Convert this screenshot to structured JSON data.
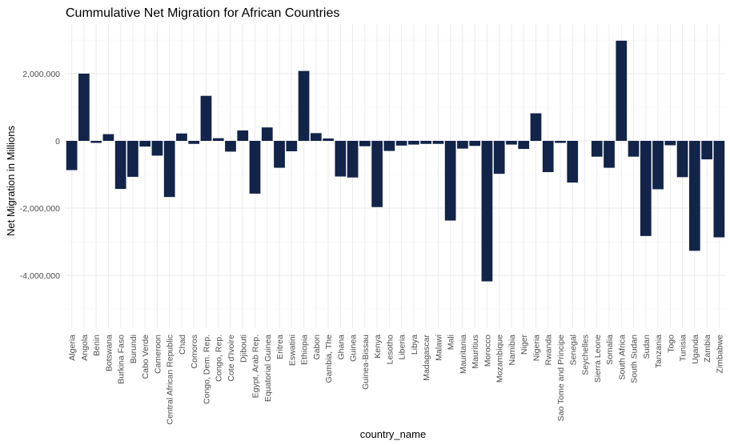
{
  "chart_data": {
    "type": "bar",
    "title": "Cummulative Net Migration for African Countries",
    "xlabel": "country_name",
    "ylabel": "Net Migration in Millions",
    "ylim": [
      -5200000,
      3100000
    ],
    "yticks": [
      -4000000,
      -2000000,
      0,
      2000000
    ],
    "ytick_labels": [
      "-4,000,000",
      "-2,000,000",
      "0",
      "2,000,000"
    ],
    "grid": true,
    "bar_color": "#13244a",
    "categories": [
      "Algeria",
      "Angola",
      "Benin",
      "Botswana",
      "Burkina Faso",
      "Burundi",
      "Cabo Verde",
      "Cameroon",
      "Central African Republic",
      "Chad",
      "Comoros",
      "Congo, Dem. Rep.",
      "Congo, Rep.",
      "Cote d'Ivoire",
      "Djibouti",
      "Egypt, Arab Rep.",
      "Equatorial Guinea",
      "Eritrea",
      "Eswatini",
      "Ethiopia",
      "Gabon",
      "Gambia, The",
      "Ghana",
      "Guinea",
      "Guinea-Bissau",
      "Kenya",
      "Lesotho",
      "Liberia",
      "Libya",
      "Madagascar",
      "Malawi",
      "Mali",
      "Mauritania",
      "Mauritius",
      "Morocco",
      "Mozambique",
      "Namibia",
      "Niger",
      "Nigeria",
      "Rwanda",
      "Sao Tome and Principe",
      "Senegal",
      "Seychelles",
      "Sierra Leone",
      "Somalia",
      "South Africa",
      "South Sudan",
      "Sudan",
      "Tanzania",
      "Togo",
      "Tunisia",
      "Uganda",
      "Zambia",
      "Zimbabwe"
    ],
    "values": [
      -870000,
      2000000,
      -60000,
      200000,
      -1430000,
      -1070000,
      -170000,
      -440000,
      -1670000,
      220000,
      -90000,
      1340000,
      80000,
      -320000,
      310000,
      -1570000,
      400000,
      -800000,
      -310000,
      2080000,
      230000,
      70000,
      -1060000,
      -1090000,
      -160000,
      -1970000,
      -300000,
      -140000,
      -110000,
      -90000,
      -90000,
      -2370000,
      -230000,
      -150000,
      -4180000,
      -980000,
      -110000,
      -240000,
      820000,
      -930000,
      -60000,
      -1240000,
      0,
      -470000,
      -800000,
      2980000,
      -470000,
      -2830000,
      -1440000,
      -130000,
      -1080000,
      -3270000,
      -550000,
      -2870000
    ]
  }
}
